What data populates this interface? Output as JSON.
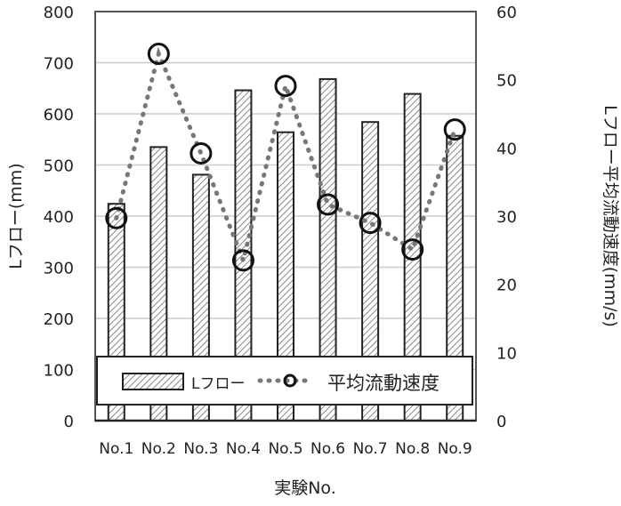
{
  "chart_data": {
    "type": "bar",
    "categories": [
      "No.1",
      "No.2",
      "No.3",
      "No.4",
      "No.5",
      "No.6",
      "No.7",
      "No.8",
      "No.9"
    ],
    "series": [
      {
        "name": "Lフロー",
        "type": "bar",
        "axis": "left",
        "values": [
          424,
          535,
          481,
          646,
          564,
          668,
          584,
          639,
          557
        ]
      },
      {
        "name": "平均流動速度",
        "type": "line",
        "axis": "right",
        "values": [
          29.7,
          53.8,
          39.2,
          23.5,
          49.1,
          31.7,
          29.0,
          25.1,
          42.7
        ]
      }
    ],
    "xlabel": "実験No.",
    "ylabel": "Lフロー(mm)",
    "y2label": "Lフロー平均流動速度(mm/s)",
    "ylim": [
      0,
      800
    ],
    "y2lim": [
      0,
      60
    ],
    "yticks": [
      "0",
      "100",
      "200",
      "300",
      "400",
      "500",
      "600",
      "700",
      "800"
    ],
    "y2ticks": [
      "0",
      "10",
      "20",
      "30",
      "40",
      "50",
      "60"
    ],
    "grid": true,
    "legend": "bottom-inside",
    "colors": {
      "bar": "#888888",
      "line": "#777777",
      "marker": "#111111"
    }
  }
}
